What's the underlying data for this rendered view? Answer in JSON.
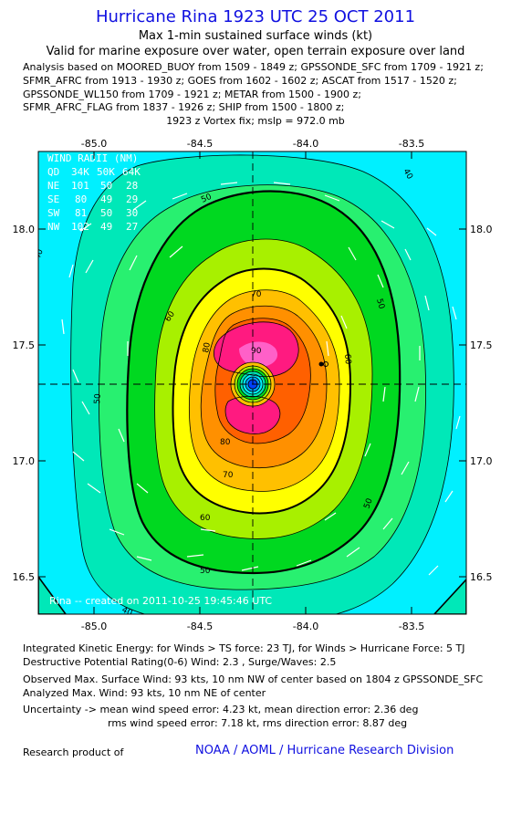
{
  "title": "Hurricane Rina 1923 UTC 25 OCT 2011",
  "subtitle1": "Max 1-min sustained surface winds (kt)",
  "subtitle2": "Valid for marine exposure over water, open terrain exposure over land",
  "analysis_lines": [
    "Analysis based on MOORED_BUOY from 1509 - 1849 z; GPSSONDE_SFC from 1709 - 1921 z;",
    "SFMR_AFRC from 1913 - 1930 z; GOES from 1602 - 1602 z; ASCAT from 1517 - 1520 z;",
    "GPSSONDE_WL150 from 1709 - 1921 z; METAR from 1500 - 1900 z;",
    "SFMR_AFRC_FLAG from 1837 - 1926 z; SHIP from 1500 - 1800 z;"
  ],
  "vortex_line": "1923 z Vortex fix; mslp = 972.0 mb",
  "map": {
    "lon_ticks": [
      "-85.0",
      "-84.5",
      "-84.0",
      "-83.5"
    ],
    "lat_ticks": [
      "18.0",
      "17.5",
      "17.0",
      "16.5"
    ],
    "lon_range": [
      -85.25,
      -83.2
    ],
    "lat_range": [
      16.35,
      18.35
    ],
    "center": {
      "lon": -84.23,
      "lat": 17.33
    },
    "contour_labels": [
      "40",
      "50",
      "60",
      "70",
      "80",
      "90"
    ],
    "wind_radii": {
      "title": "WIND RADII (NM)",
      "header": [
        "QD",
        "34K",
        "50K",
        "64K"
      ],
      "rows": [
        [
          "NE",
          "101",
          "50",
          "28"
        ],
        [
          "SE",
          "80",
          "49",
          "29"
        ],
        [
          "SW",
          "81",
          "50",
          "30"
        ],
        [
          "NW",
          "102",
          "49",
          "27"
        ]
      ]
    },
    "credit": "Rina -- created on 2011-10-25 19:45:46 UTC",
    "colors": {
      "cyan": "#00f0ff",
      "teal": "#00e8b8",
      "mint": "#28f070",
      "green": "#00d820",
      "lime": "#a8f000",
      "yellow": "#ffff00",
      "yelloworange": "#ffc000",
      "orange": "#ff9000",
      "darkorange": "#ff6000",
      "pink": "#ff1a80",
      "magenta": "#ff60c8"
    }
  },
  "footer": {
    "ike": "Integrated Kinetic Energy:  for Winds > TS force: 23 TJ,  for Winds > Hurricane Force: 5 TJ",
    "dpr": "Destructive Potential Rating(0-6)  Wind: 2.3 , Surge/Waves: 2.5",
    "obs": "Observed Max. Surface Wind: 93 kts, 10 nm NW of center based on 1804 z GPSSONDE_SFC",
    "ana": "Analyzed Max. Wind: 93 kts, 10 nm NE of center",
    "unc1": "Uncertainty -> mean wind speed error: 4.23 kt,   mean direction error: 2.36 deg",
    "unc2": "rms wind speed error: 7.18 kt,   rms direction error: 8.87 deg",
    "research": "Research product of",
    "noaa": "NOAA / AOML / Hurricane Research Division"
  }
}
